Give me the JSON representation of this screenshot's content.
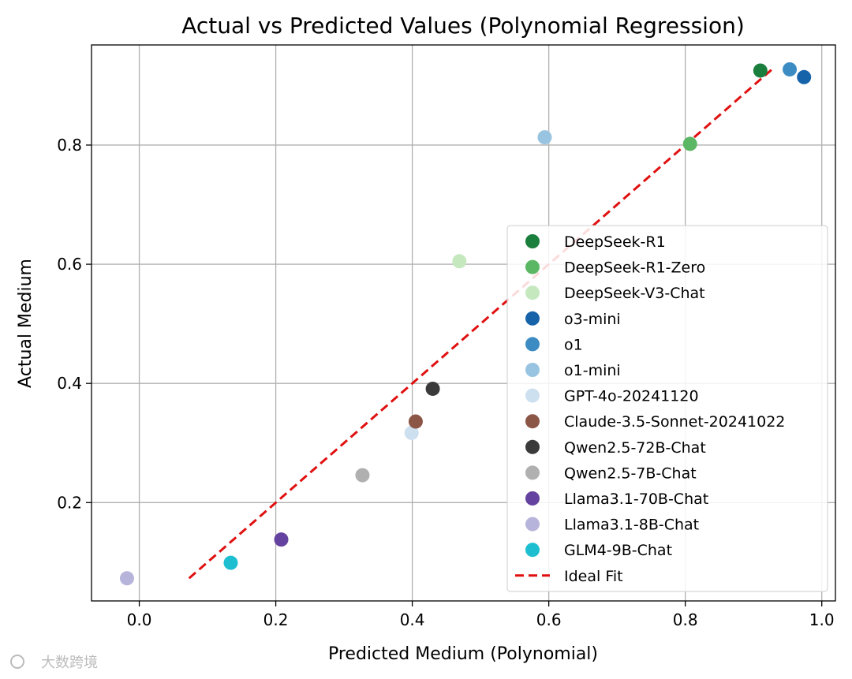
{
  "chart_data": {
    "type": "scatter",
    "title": "Actual vs Predicted Values (Polynomial Regression)",
    "xlabel": "Predicted Medium (Polynomial)",
    "ylabel": "Actual Medium",
    "xlim": [
      -0.07,
      1.02
    ],
    "ylim": [
      0.035,
      0.968
    ],
    "xticks": [
      0.0,
      0.2,
      0.4,
      0.6,
      0.8,
      1.0
    ],
    "xtick_labels": [
      "0.0",
      "0.2",
      "0.4",
      "0.6",
      "0.8",
      "1.0"
    ],
    "yticks": [
      0.2,
      0.4,
      0.6,
      0.8
    ],
    "ytick_labels": [
      "0.2",
      "0.4",
      "0.6",
      "0.8"
    ],
    "grid": true,
    "legend_position": "lower-right",
    "series": [
      {
        "name": "DeepSeek-R1",
        "color": "#1a7e3c",
        "x": 0.91,
        "y": 0.925
      },
      {
        "name": "DeepSeek-R1-Zero",
        "color": "#5cb764",
        "x": 0.807,
        "y": 0.802
      },
      {
        "name": "DeepSeek-V3-Chat",
        "color": "#c5e8bf",
        "x": 0.469,
        "y": 0.605
      },
      {
        "name": "o3-mini",
        "color": "#1763aa",
        "x": 0.974,
        "y": 0.914
      },
      {
        "name": "o1",
        "color": "#3c8cc3",
        "x": 0.953,
        "y": 0.927
      },
      {
        "name": "o1-mini",
        "color": "#98c4e1",
        "x": 0.594,
        "y": 0.813
      },
      {
        "name": "GPT-4o-20241120",
        "color": "#cde0f0",
        "x": 0.399,
        "y": 0.317
      },
      {
        "name": "Claude-3.5-Sonnet-20241022",
        "color": "#8c5647",
        "x": 0.405,
        "y": 0.336
      },
      {
        "name": "Qwen2.5-72B-Chat",
        "color": "#3a3a3a",
        "x": 0.43,
        "y": 0.391
      },
      {
        "name": "Qwen2.5-7B-Chat",
        "color": "#b0b0b0",
        "x": 0.327,
        "y": 0.246
      },
      {
        "name": "Llama3.1-70B-Chat",
        "color": "#6443a0",
        "x": 0.208,
        "y": 0.138
      },
      {
        "name": "Llama3.1-8B-Chat",
        "color": "#b6b4da",
        "x": -0.018,
        "y": 0.073
      },
      {
        "name": "GLM4-9B-Chat",
        "color": "#1cbecf",
        "x": 0.134,
        "y": 0.099
      }
    ],
    "ideal_fit": {
      "name": "Ideal Fit",
      "color": "#e01010",
      "x": [
        0.073,
        0.928
      ],
      "y": [
        0.073,
        0.928
      ]
    }
  },
  "watermark": {
    "text": "大数跨境"
  }
}
